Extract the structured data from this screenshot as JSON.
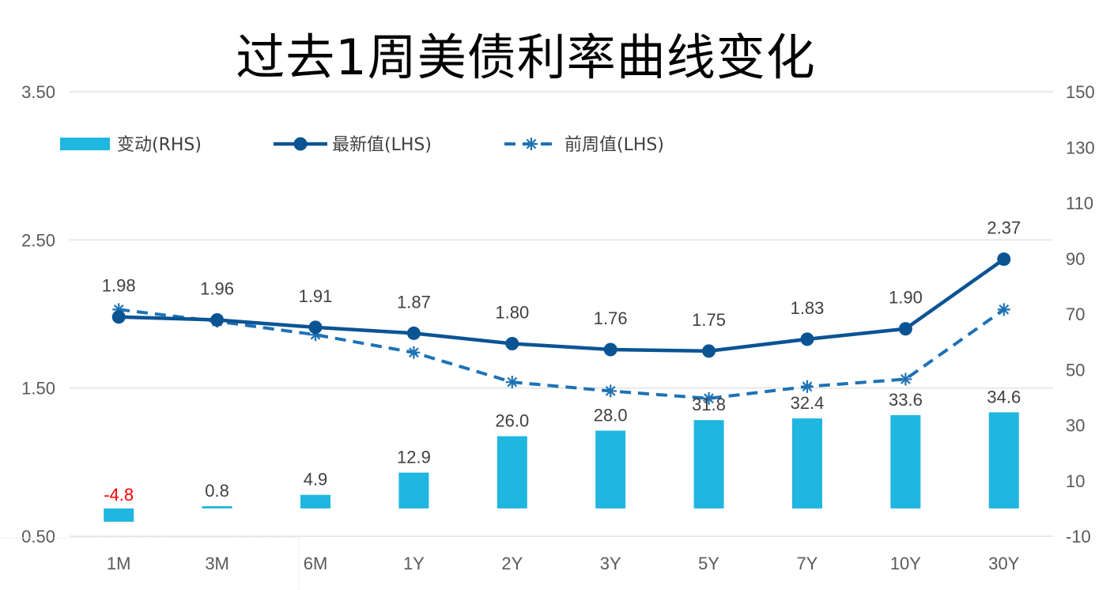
{
  "chart_data": {
    "type": "bar+line",
    "title": "过去1周美债利率曲线变化",
    "categories": [
      "1M",
      "3M",
      "6M",
      "1Y",
      "2Y",
      "3Y",
      "5Y",
      "7Y",
      "10Y",
      "30Y"
    ],
    "series": [
      {
        "name": "变动(RHS)",
        "kind": "bar",
        "axis": "right",
        "color": "#1FB6E0",
        "values": [
          -4.8,
          0.8,
          4.9,
          12.9,
          26.0,
          28.0,
          31.8,
          32.4,
          33.6,
          34.6
        ],
        "labels": [
          "-4.8",
          "0.8",
          "4.9",
          "12.9",
          "26.0",
          "28.0",
          "31.8",
          "32.4",
          "33.6",
          "34.6"
        ],
        "negative_label_color": "#FF0000"
      },
      {
        "name": "最新值(LHS)",
        "kind": "line",
        "axis": "left",
        "color": "#0A5494",
        "marker": "circle",
        "values": [
          1.98,
          1.96,
          1.91,
          1.87,
          1.8,
          1.76,
          1.75,
          1.83,
          1.9,
          2.37
        ],
        "labels": [
          "1.98",
          "1.96",
          "1.91",
          "1.87",
          "1.80",
          "1.76",
          "1.75",
          "1.83",
          "1.90",
          "2.37"
        ]
      },
      {
        "name": "前周值(LHS)",
        "kind": "line",
        "axis": "left",
        "color": "#1E72B5",
        "marker": "star",
        "dashed": true,
        "values": [
          2.03,
          1.95,
          1.86,
          1.74,
          1.54,
          1.48,
          1.43,
          1.51,
          1.56,
          2.03
        ]
      }
    ],
    "y_left": {
      "ylim": [
        0.5,
        3.5
      ],
      "ticks": [
        0.5,
        1.5,
        2.5,
        3.5
      ],
      "tick_labels": [
        "0.50",
        "1.50",
        "2.50",
        "3.50"
      ]
    },
    "y_right": {
      "ylim": [
        -10,
        150
      ],
      "ticks": [
        -10,
        10,
        30,
        50,
        70,
        90,
        110,
        130,
        150
      ],
      "tick_labels": [
        "-10",
        "10",
        "30",
        "50",
        "70",
        "90",
        "110",
        "130",
        "150"
      ]
    },
    "grid": true,
    "legend_position": "top-left"
  }
}
